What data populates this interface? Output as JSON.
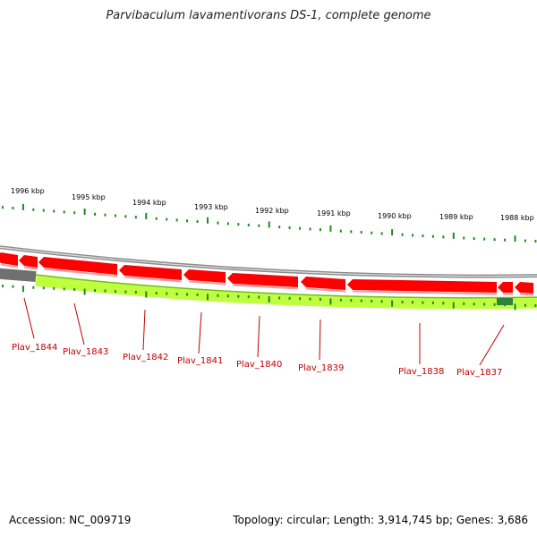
{
  "title": "Parvibaculum lavamentivorans DS-1, complete genome",
  "footer": {
    "accession": "Accession: NC_009719",
    "stats": "Topology: circular; Length: 3,914,745 bp; Genes: 3,686"
  },
  "kbp_labels": [
    "1996 kbp",
    "1995 kbp",
    "1994 kbp",
    "1993 kbp",
    "1992 kbp",
    "1991 kbp",
    "1990 kbp",
    "1989 kbp",
    "1988 kbp"
  ],
  "gene_labels": [
    "Plav_1844",
    "Plav_1843",
    "Plav_1842",
    "Plav_1841",
    "Plav_1840",
    "Plav_1839",
    "Plav_1838",
    "Plav_1837"
  ],
  "colors": {
    "gene_red": "#ff0000",
    "gene_red_light": "#ff9999",
    "feature_green": "#bfff3f",
    "feature_dark": "#707070",
    "tick_green": "#1f8a1f",
    "label_red": "#c00000",
    "backbone_gray": "#8c8c8c"
  }
}
